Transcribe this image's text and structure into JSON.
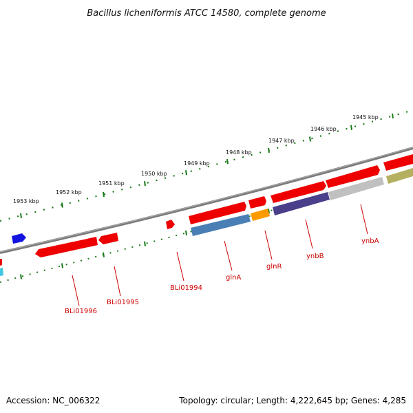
{
  "title": "Bacillus licheniformis ATCC 14580, complete genome",
  "footer": {
    "accession": "Accession: NC_006322",
    "topology": "Topology: circular; Length: 4,222,645 bp; Genes: 4,285"
  },
  "scale_labels": [
    "1953 kbp",
    "1952 kbp",
    "1951 kbp",
    "1950 kbp",
    "1949 kbp",
    "1948 kbp",
    "1947 kbp",
    "1946 kbp",
    "1945 kbp"
  ],
  "gene_labels": [
    "BLi01996",
    "BLi01995",
    "BLi01994",
    "glnA",
    "glnR",
    "ynbB",
    "ynbA"
  ],
  "colors": {
    "backbone": "#777777",
    "scale_ticks": "#1a7a1a",
    "gene_red": "#ee0000",
    "label_red": "#cc0000",
    "blue": "#1414e0",
    "steel_blue": "#4a7fb5",
    "orange": "#ff9900",
    "purple": "#4a3f8a",
    "grey": "#c0c0c0",
    "olive": "#b5b060",
    "cyan": "#40c8e0"
  }
}
